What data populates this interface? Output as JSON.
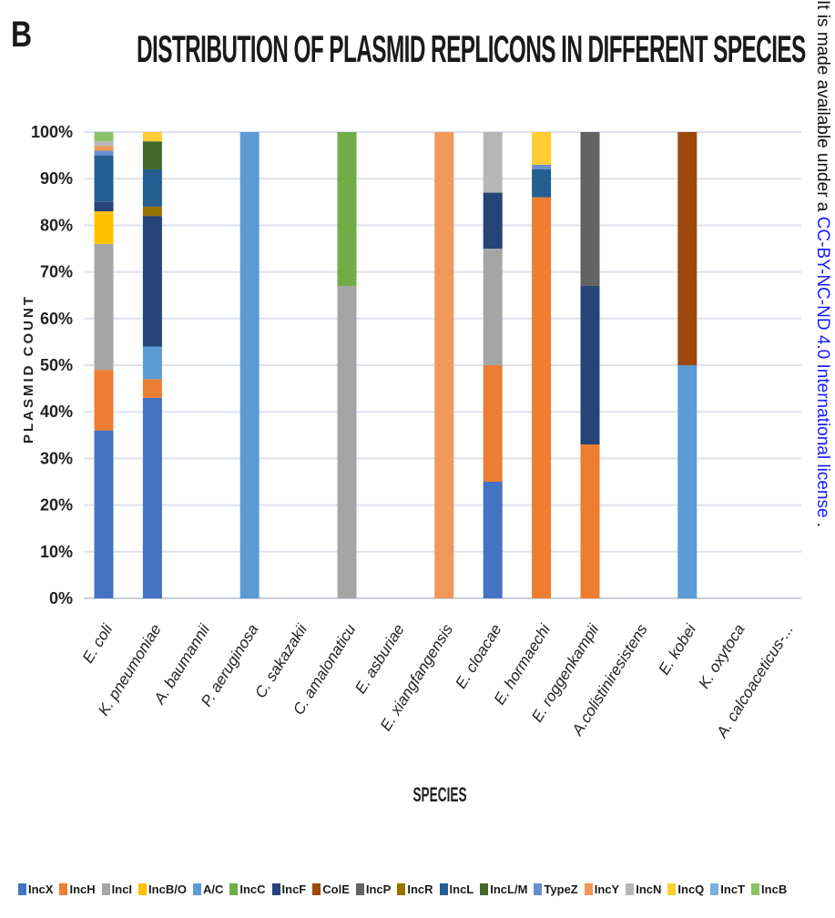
{
  "panel_letter": "B",
  "side_notice": {
    "prefix": "It is made available under a ",
    "link": "CC-BY-NC-ND 4.0 International license",
    "suffix": " ."
  },
  "colors": {
    "IncX": "#4472c4",
    "IncH": "#ed7d31",
    "IncI": "#a5a5a5",
    "IncB/O": "#ffc000",
    "A/C": "#5b9bd5",
    "IncC": "#70ad47",
    "IncF": "#264478",
    "ColE": "#9e480e",
    "IncP": "#636363",
    "IncR": "#997300",
    "IncL": "#255e91",
    "IncL/M": "#43682b",
    "TypeZ": "#698ed0",
    "IncY": "#f1975a",
    "IncN": "#b7b7b7",
    "IncQ": "#ffcd33",
    "IncT": "#7cafdd",
    "IncB": "#8cc168"
  },
  "chart_data": {
    "type": "bar",
    "stacked": "percent",
    "title": "DISTRIBUTION OF PLASMID REPLICONS IN DIFFERENT SPECIES",
    "xlabel": "SPECIES",
    "ylabel": "PLASMID COUNT",
    "ylim": [
      0,
      100
    ],
    "yticks": [
      "0%",
      "10%",
      "20%",
      "30%",
      "40%",
      "50%",
      "60%",
      "70%",
      "80%",
      "90%",
      "100%"
    ],
    "grid": true,
    "legend_position": "bottom",
    "categories": [
      "E. coli",
      "K. pneumoniae",
      "A. baumannii",
      "P. aeruginosa",
      "C. sakazakii",
      "C. amalonaticu",
      "E. asburiae",
      "E. xiangfangensis",
      "E. cloacae",
      "E. hormaechi",
      "E. roggenkampii",
      "A.colistiniresistens",
      "E. kobei",
      "K. oxytoca",
      "A. calcoaceticus-..."
    ],
    "series": [
      {
        "name": "IncX",
        "values": [
          36,
          43,
          0,
          0,
          0,
          0,
          0,
          0,
          25,
          0,
          0,
          0,
          0,
          0,
          0
        ]
      },
      {
        "name": "IncH",
        "values": [
          13,
          4,
          0,
          0,
          0,
          0,
          0,
          0,
          25,
          86,
          33,
          0,
          0,
          0,
          0
        ]
      },
      {
        "name": "IncI",
        "values": [
          27,
          0,
          0,
          0,
          0,
          67,
          0,
          0,
          25,
          0,
          0,
          0,
          0,
          0,
          0
        ]
      },
      {
        "name": "IncB/O",
        "values": [
          7,
          0,
          0,
          0,
          0,
          0,
          0,
          0,
          0,
          0,
          0,
          0,
          0,
          0,
          0
        ]
      },
      {
        "name": "A/C",
        "values": [
          0,
          7,
          0,
          100,
          0,
          0,
          0,
          0,
          0,
          0,
          0,
          0,
          50,
          0,
          0
        ]
      },
      {
        "name": "IncC",
        "values": [
          0,
          0,
          0,
          0,
          0,
          33,
          0,
          0,
          0,
          0,
          0,
          0,
          0,
          0,
          0
        ]
      },
      {
        "name": "IncF",
        "values": [
          2,
          28,
          0,
          0,
          0,
          0,
          0,
          0,
          12,
          0,
          34,
          0,
          0,
          0,
          0
        ]
      },
      {
        "name": "ColE",
        "values": [
          0,
          0,
          0,
          0,
          0,
          0,
          0,
          0,
          0,
          0,
          0,
          0,
          50,
          0,
          0
        ]
      },
      {
        "name": "IncP",
        "values": [
          0,
          0,
          0,
          0,
          0,
          0,
          0,
          0,
          0,
          0,
          33,
          0,
          0,
          0,
          0
        ]
      },
      {
        "name": "IncR",
        "values": [
          0,
          2,
          0,
          0,
          0,
          0,
          0,
          0,
          0,
          0,
          0,
          0,
          0,
          0,
          0
        ]
      },
      {
        "name": "IncL",
        "values": [
          10,
          8,
          0,
          0,
          0,
          0,
          0,
          0,
          0,
          6,
          0,
          0,
          0,
          0,
          0
        ]
      },
      {
        "name": "IncL/M",
        "values": [
          0,
          6,
          0,
          0,
          0,
          0,
          0,
          0,
          0,
          0,
          0,
          0,
          0,
          0,
          0
        ]
      },
      {
        "name": "TypeZ",
        "values": [
          1,
          0,
          0,
          0,
          0,
          0,
          0,
          0,
          0,
          1,
          0,
          0,
          0,
          0,
          0
        ]
      },
      {
        "name": "IncY",
        "values": [
          1,
          0,
          0,
          0,
          0,
          0,
          0,
          100,
          0,
          0,
          0,
          0,
          0,
          0,
          0
        ]
      },
      {
        "name": "IncN",
        "values": [
          1,
          0,
          0,
          0,
          0,
          0,
          0,
          0,
          13,
          0,
          0,
          0,
          0,
          0,
          0
        ]
      },
      {
        "name": "IncQ",
        "values": [
          0,
          2,
          0,
          0,
          0,
          0,
          0,
          0,
          0,
          7,
          0,
          0,
          0,
          0,
          0
        ]
      },
      {
        "name": "IncT",
        "values": [
          0,
          0,
          0,
          0,
          0,
          0,
          0,
          0,
          0,
          0,
          0,
          0,
          0,
          0,
          0
        ]
      },
      {
        "name": "IncB",
        "values": [
          2,
          0,
          0,
          0,
          0,
          0,
          0,
          0,
          0,
          0,
          0,
          0,
          0,
          0,
          0
        ]
      }
    ]
  }
}
